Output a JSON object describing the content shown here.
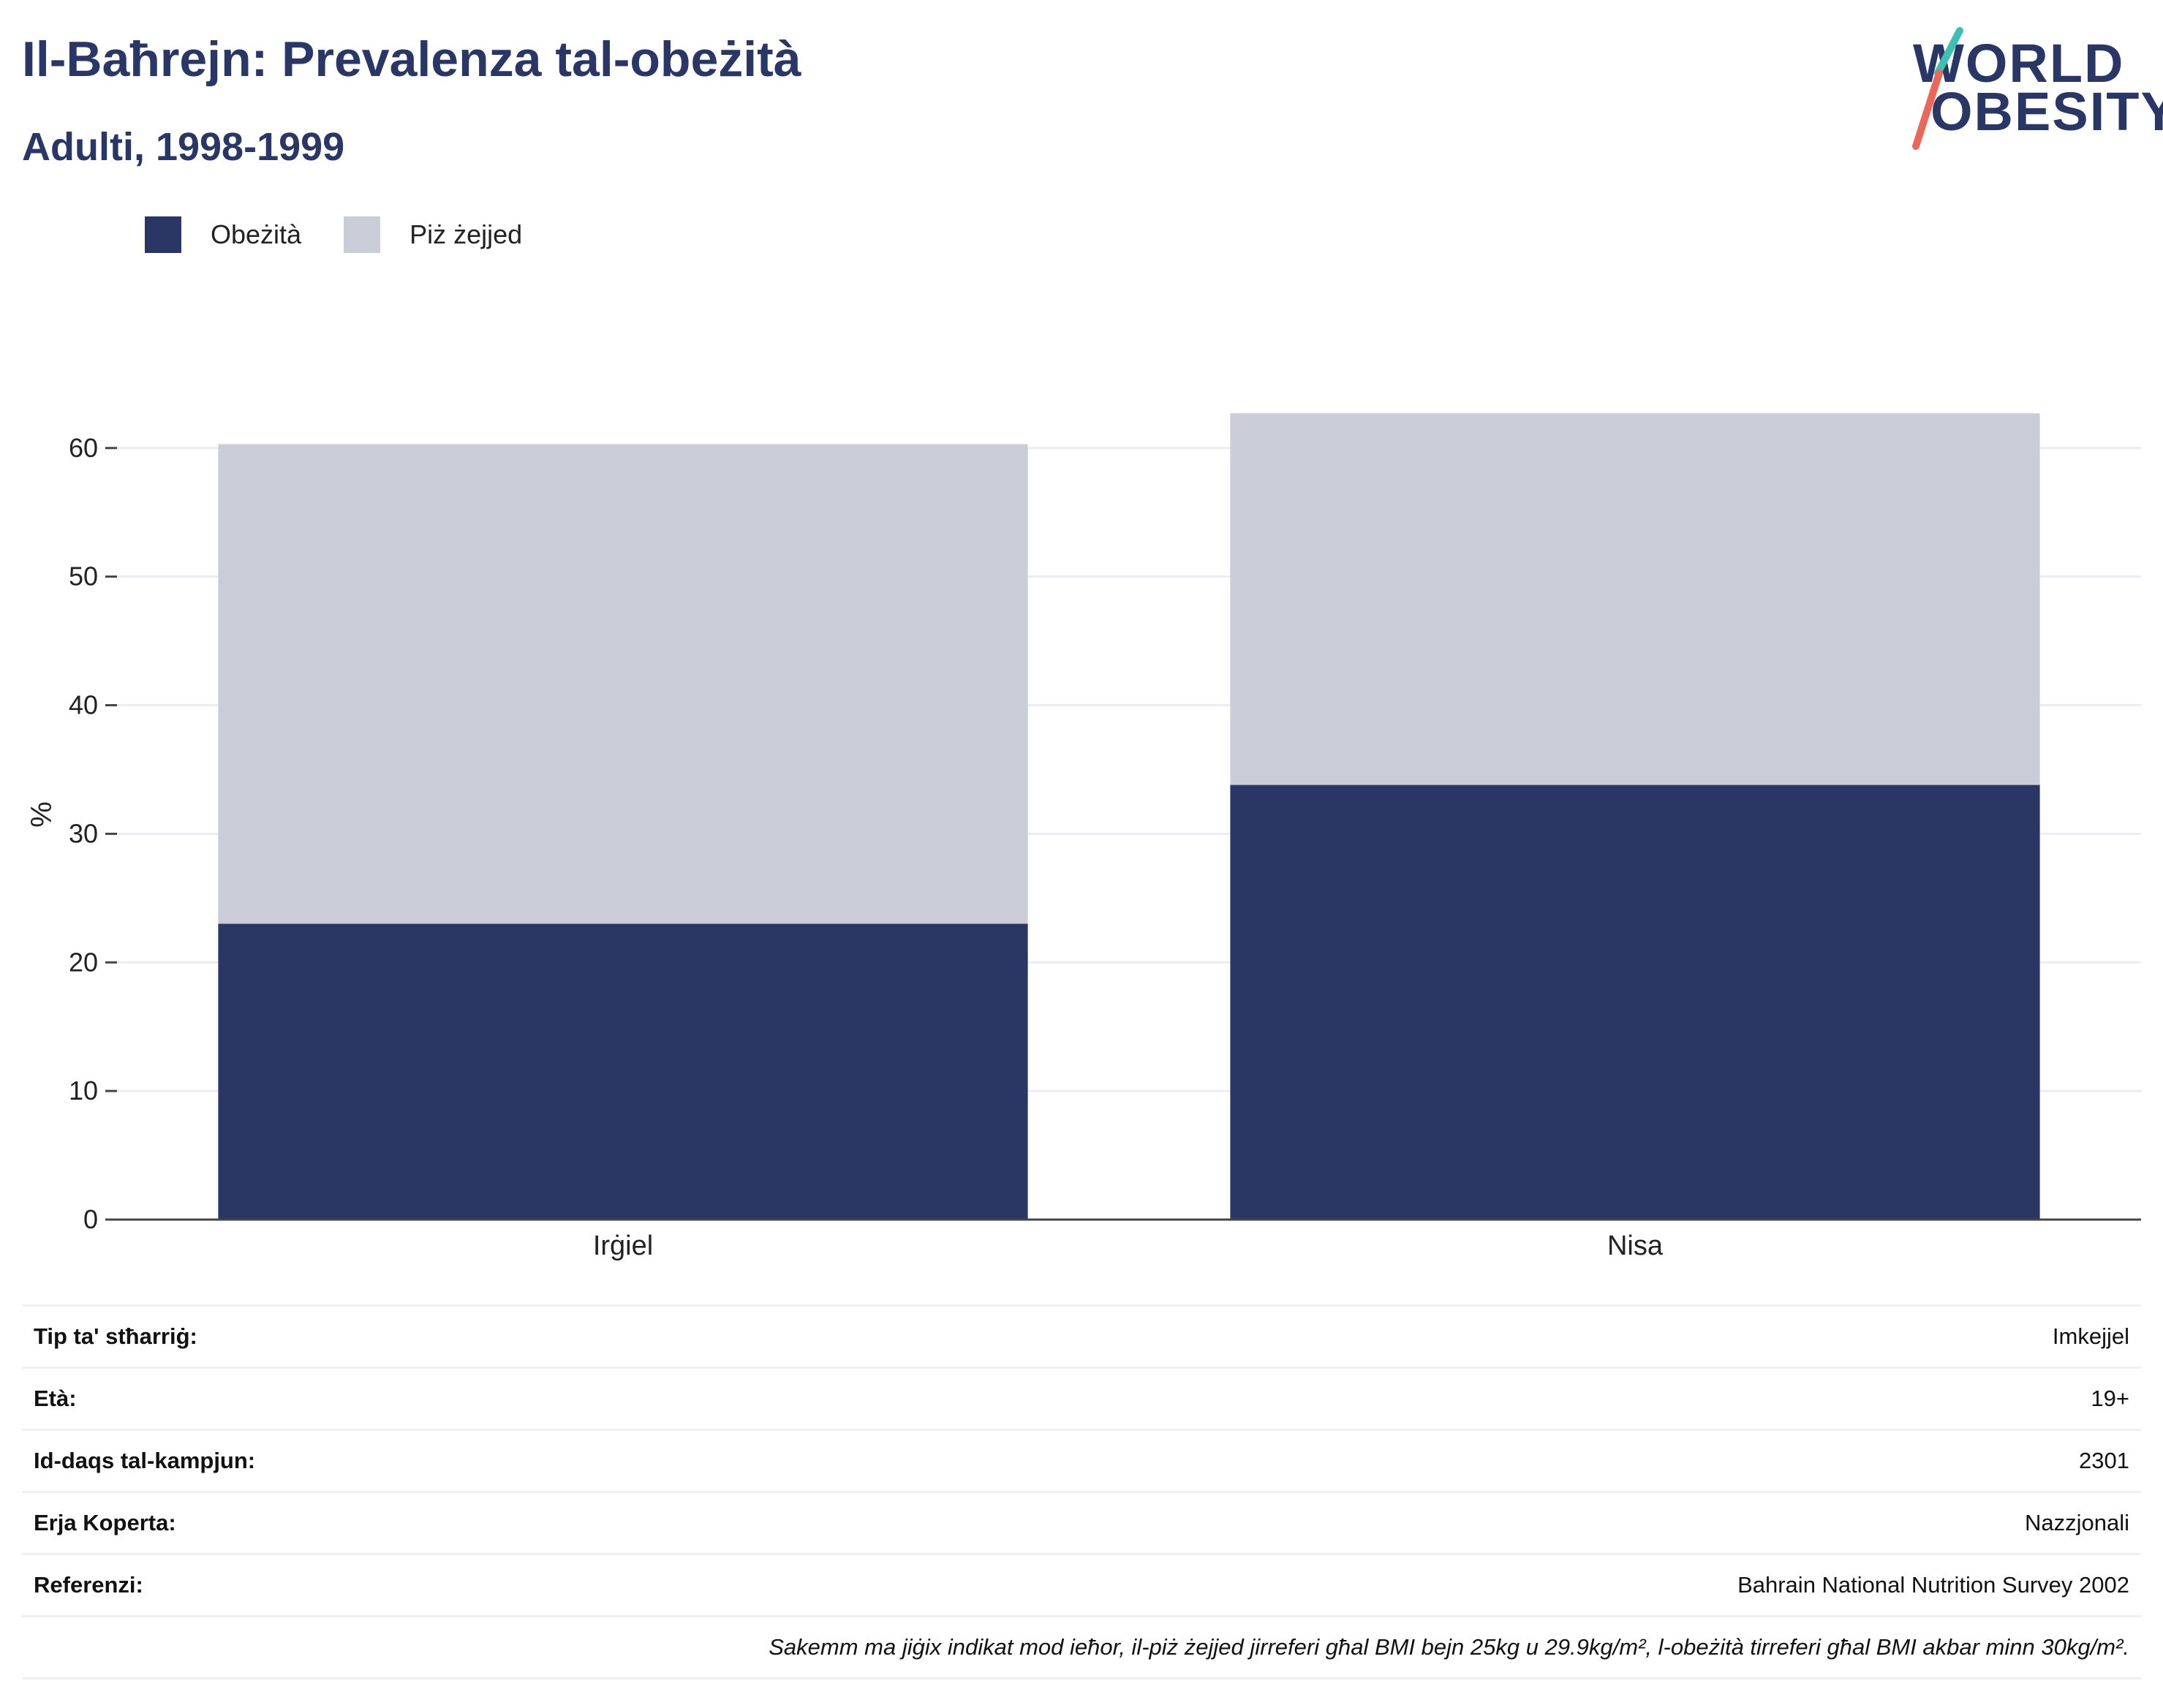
{
  "header": {
    "title": "Il-Baħrejn: Prevalenza tal-obeżità",
    "subtitle": "Adulti, 1998-1999"
  },
  "logo": {
    "line1": "WORLD",
    "line2": "OBESITY",
    "accent_colors": [
      "#3fbfb4",
      "#e8685a"
    ]
  },
  "legend": [
    {
      "label": "Obeżità",
      "color": "#2a3664"
    },
    {
      "label": "Piż żejjed",
      "color": "#caccd8"
    }
  ],
  "chart_data": {
    "type": "bar",
    "stacked": true,
    "categories": [
      "Irġiel",
      "Nisa"
    ],
    "series": [
      {
        "name": "Obeżità",
        "values": [
          23.0,
          33.8
        ],
        "color": "#2a3664"
      },
      {
        "name": "Piż żejjed",
        "values": [
          37.3,
          28.9
        ],
        "color": "#caccd8"
      }
    ],
    "ylabel": "%",
    "ylim": [
      0,
      63
    ],
    "yticks": [
      0,
      10,
      20,
      30,
      40,
      50,
      60
    ],
    "grid": true,
    "legend_position": "top-left"
  },
  "info": {
    "rows": [
      {
        "key": "Tip ta' stħarriġ:",
        "value": "Imkejjel"
      },
      {
        "key": "Età:",
        "value": "19+"
      },
      {
        "key": "Id-daqs tal-kampjun:",
        "value": "2301"
      },
      {
        "key": "Erja Koperta:",
        "value": "Nazzjonali"
      },
      {
        "key": "Referenzi:",
        "value": "Bahrain National Nutrition Survey 2002"
      }
    ],
    "note": "Sakemm ma jiġix indikat mod ieħor, il-piż żejjed jirreferi għal BMI bejn 25kg u 29.9kg/m², l-obeżità tirreferi għal BMI akbar minn 30kg/m²."
  }
}
